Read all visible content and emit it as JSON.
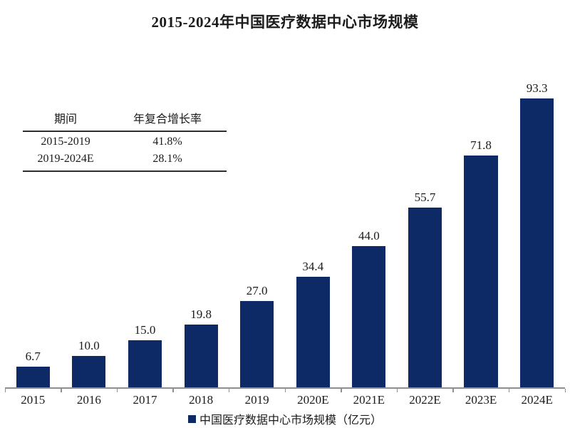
{
  "title": "2015-2024年中国医疗数据中心市场规模",
  "cagr_table": {
    "headers": [
      "期间",
      "年复合增长率"
    ],
    "rows": [
      {
        "period": "2015-2019",
        "cagr": "41.8%"
      },
      {
        "period": "2019-2024E",
        "cagr": "28.1%"
      }
    ]
  },
  "legend": {
    "marker": "square-icon",
    "label": "中国医疗数据中心市场规模（亿元）"
  },
  "colors": {
    "bar": "#0e2a66",
    "axis": "#8f8f8f",
    "text": "#1b1b1b"
  },
  "chart_data": {
    "type": "bar",
    "title": "2015-2024年中国医疗数据中心市场规模",
    "categories": [
      "2015",
      "2016",
      "2017",
      "2018",
      "2019",
      "2020E",
      "2021E",
      "2022E",
      "2023E",
      "2024E"
    ],
    "values": [
      6.7,
      10.0,
      15.0,
      19.8,
      27.0,
      34.4,
      44.0,
      55.7,
      71.8,
      93.3
    ],
    "value_labels": [
      "6.7",
      "10.0",
      "15.0",
      "19.8",
      "27.0",
      "34.4",
      "44.0",
      "55.7",
      "71.8",
      "93.3"
    ],
    "unit": "亿元",
    "xlabel": "",
    "ylabel": "",
    "y_axis_visible": false,
    "grid": false,
    "data_labels": true,
    "legend_entries": [
      "中国医疗数据中心市场规模（亿元）"
    ],
    "legend_position": "bottom",
    "bar_color": "#0e2a66",
    "inset_table": {
      "headers": [
        "期间",
        "年复合增长率"
      ],
      "rows": [
        [
          "2015-2019",
          "41.8%"
        ],
        [
          "2019-2024E",
          "28.1%"
        ]
      ]
    }
  }
}
